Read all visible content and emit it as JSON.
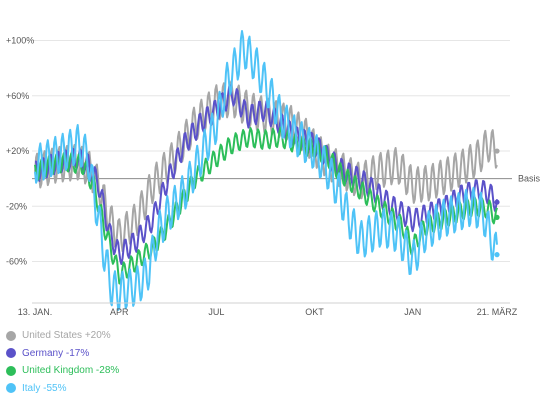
{
  "chart_data": {
    "type": "line",
    "x_ticks": [
      "13. JAN.",
      "APR",
      "JUL",
      "OKT",
      "JAN",
      "21. MÄRZ"
    ],
    "y_ticks": [
      "+100%",
      "+60%",
      "+20%",
      "-20%",
      "-60%"
    ],
    "y_tick_values": [
      100,
      60,
      20,
      -20,
      -60
    ],
    "baseline_label": "Basis",
    "ylim": [
      -90,
      125
    ],
    "x_range_days": [
      0,
      433
    ],
    "x_tick_days": [
      0,
      79,
      170,
      262,
      354,
      433
    ],
    "grid": "horizontal",
    "legend_position": "bottom-left",
    "series": [
      {
        "name": "United States +20%",
        "color": "#a6a6a6",
        "amplitude": 13,
        "points": [
          [
            0,
            5
          ],
          [
            20,
            10
          ],
          [
            40,
            12
          ],
          [
            50,
            8
          ],
          [
            60,
            -5
          ],
          [
            70,
            -30
          ],
          [
            79,
            -42
          ],
          [
            95,
            -30
          ],
          [
            110,
            -5
          ],
          [
            130,
            15
          ],
          [
            150,
            40
          ],
          [
            170,
            55
          ],
          [
            185,
            58
          ],
          [
            200,
            50
          ],
          [
            220,
            45
          ],
          [
            240,
            40
          ],
          [
            255,
            30
          ],
          [
            262,
            22
          ],
          [
            275,
            12
          ],
          [
            290,
            5
          ],
          [
            305,
            -2
          ],
          [
            320,
            5
          ],
          [
            340,
            10
          ],
          [
            354,
            -5
          ],
          [
            370,
            -3
          ],
          [
            385,
            2
          ],
          [
            400,
            8
          ],
          [
            415,
            15
          ],
          [
            425,
            25
          ],
          [
            433,
            20
          ]
        ]
      },
      {
        "name": "Germany -17%",
        "color": "#5b52c9",
        "amplitude": 8,
        "points": [
          [
            0,
            5
          ],
          [
            20,
            12
          ],
          [
            40,
            15
          ],
          [
            50,
            10
          ],
          [
            60,
            -5
          ],
          [
            70,
            -40
          ],
          [
            79,
            -55
          ],
          [
            95,
            -45
          ],
          [
            110,
            -30
          ],
          [
            125,
            0
          ],
          [
            140,
            25
          ],
          [
            155,
            40
          ],
          [
            170,
            50
          ],
          [
            185,
            62
          ],
          [
            200,
            45
          ],
          [
            215,
            50
          ],
          [
            230,
            40
          ],
          [
            245,
            30
          ],
          [
            262,
            25
          ],
          [
            275,
            15
          ],
          [
            290,
            5
          ],
          [
            305,
            0
          ],
          [
            320,
            -10
          ],
          [
            335,
            -20
          ],
          [
            354,
            -30
          ],
          [
            370,
            -25
          ],
          [
            385,
            -20
          ],
          [
            400,
            -12
          ],
          [
            415,
            -8
          ],
          [
            425,
            -10
          ],
          [
            433,
            -17
          ]
        ]
      },
      {
        "name": "United Kingdom -28%",
        "color": "#2dbe5a",
        "amplitude": 7,
        "points": [
          [
            0,
            5
          ],
          [
            15,
            10
          ],
          [
            30,
            12
          ],
          [
            45,
            10
          ],
          [
            55,
            -5
          ],
          [
            65,
            -35
          ],
          [
            79,
            -70
          ],
          [
            95,
            -60
          ],
          [
            110,
            -50
          ],
          [
            120,
            -40
          ],
          [
            135,
            -20
          ],
          [
            150,
            0
          ],
          [
            170,
            15
          ],
          [
            185,
            25
          ],
          [
            200,
            30
          ],
          [
            215,
            28
          ],
          [
            230,
            30
          ],
          [
            245,
            25
          ],
          [
            262,
            22
          ],
          [
            275,
            15
          ],
          [
            285,
            5
          ],
          [
            300,
            -5
          ],
          [
            315,
            -15
          ],
          [
            330,
            -25
          ],
          [
            345,
            -35
          ],
          [
            354,
            -50
          ],
          [
            365,
            -35
          ],
          [
            380,
            -30
          ],
          [
            395,
            -25
          ],
          [
            410,
            -20
          ],
          [
            425,
            -22
          ],
          [
            433,
            -28
          ]
        ]
      },
      {
        "name": "Italy -55%",
        "color": "#4fc3f7",
        "amplitude": 14,
        "points": [
          [
            0,
            10
          ],
          [
            15,
            15
          ],
          [
            30,
            20
          ],
          [
            40,
            25
          ],
          [
            50,
            15
          ],
          [
            55,
            -10
          ],
          [
            60,
            -30
          ],
          [
            65,
            -55
          ],
          [
            72,
            -80
          ],
          [
            79,
            -82
          ],
          [
            95,
            -78
          ],
          [
            105,
            -70
          ],
          [
            115,
            -40
          ],
          [
            125,
            -25
          ],
          [
            140,
            -10
          ],
          [
            155,
            15
          ],
          [
            170,
            40
          ],
          [
            180,
            70
          ],
          [
            190,
            85
          ],
          [
            195,
            95
          ],
          [
            205,
            85
          ],
          [
            215,
            70
          ],
          [
            230,
            45
          ],
          [
            245,
            30
          ],
          [
            262,
            20
          ],
          [
            275,
            5
          ],
          [
            285,
            -10
          ],
          [
            295,
            -30
          ],
          [
            305,
            -45
          ],
          [
            315,
            -40
          ],
          [
            325,
            -35
          ],
          [
            340,
            -40
          ],
          [
            354,
            -60
          ],
          [
            365,
            -40
          ],
          [
            380,
            -30
          ],
          [
            395,
            -25
          ],
          [
            410,
            -20
          ],
          [
            420,
            -25
          ],
          [
            428,
            -45
          ],
          [
            433,
            -55
          ]
        ]
      }
    ]
  }
}
